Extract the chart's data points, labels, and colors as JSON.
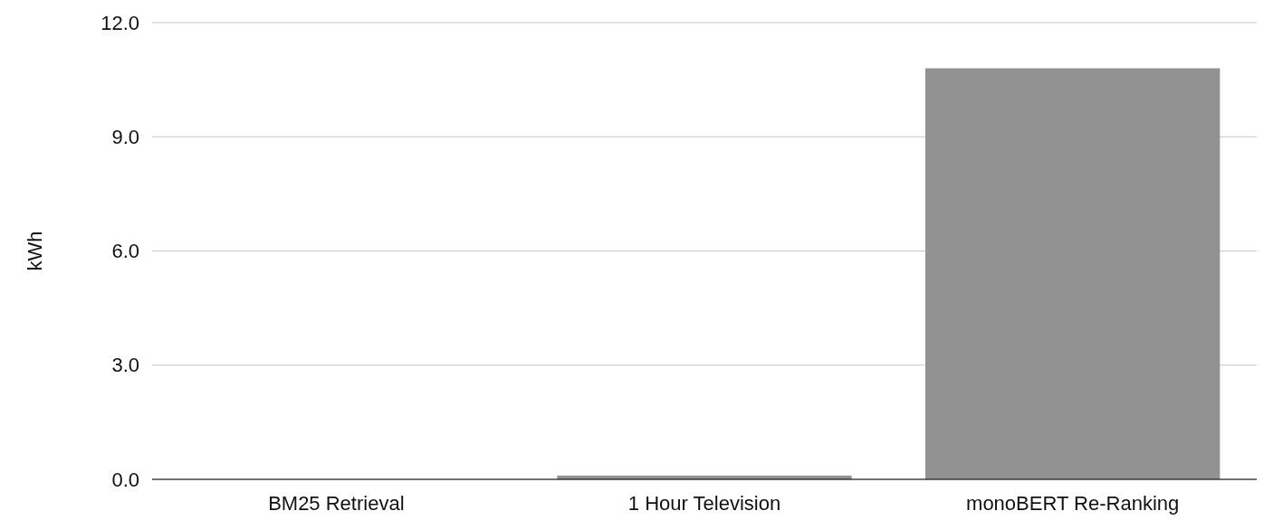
{
  "chart_data": {
    "type": "bar",
    "ylabel": "kWh",
    "categories": [
      "BM25 Retrieval",
      "1 Hour Television",
      "monoBERT Re-Ranking"
    ],
    "values": [
      0,
      0.1,
      10.8
    ],
    "color": "#929292",
    "ylim": [
      0,
      12
    ],
    "yticks": [
      {
        "value": 0,
        "label": "0.0"
      },
      {
        "value": 3,
        "label": "3.0"
      },
      {
        "value": 6,
        "label": "6.0"
      },
      {
        "value": 9,
        "label": "9.0"
      },
      {
        "value": 12,
        "label": "12.0"
      }
    ],
    "grid": "y"
  }
}
